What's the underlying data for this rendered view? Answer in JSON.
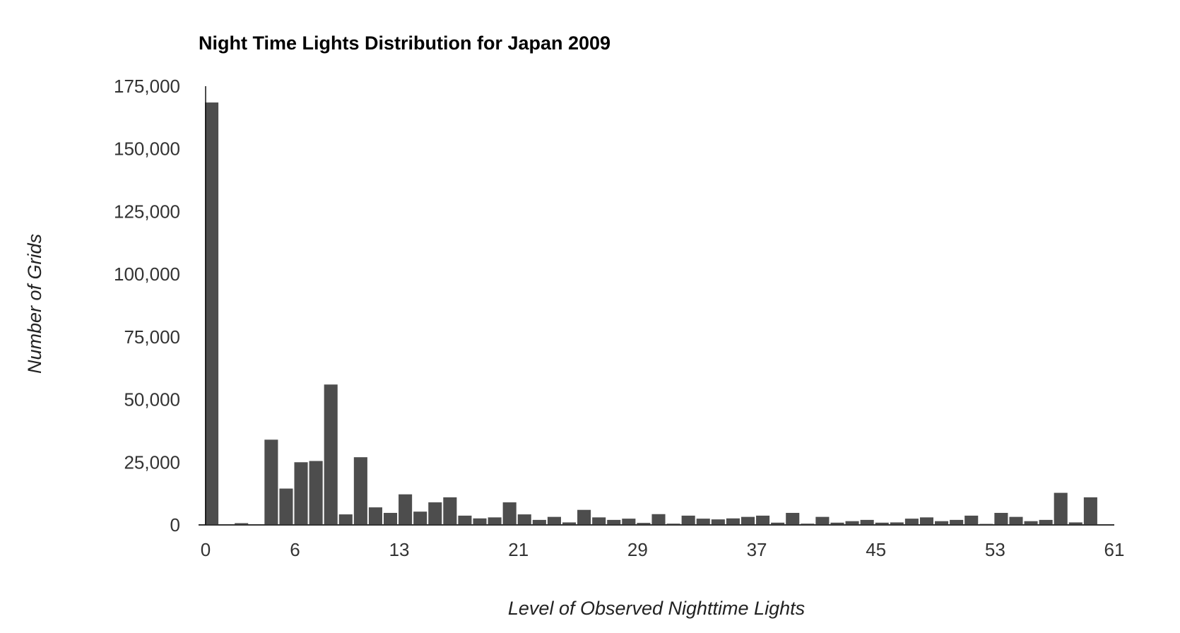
{
  "colors": {
    "bar": "#4d4d4d",
    "axis": "#333333",
    "text": "#333333",
    "background": "#ffffff"
  },
  "chart_data": {
    "type": "bar",
    "title": "Night Time Lights Distribution for Japan 2009",
    "xlabel": "Level of Observed Nighttime Lights",
    "ylabel": "Number of Grids",
    "xlim": [
      0,
      61
    ],
    "ylim": [
      0,
      175000
    ],
    "grid": false,
    "legend": "none",
    "x_ticks": [
      "0",
      "6",
      "13",
      "21",
      "29",
      "37",
      "45",
      "53",
      "61"
    ],
    "y_ticks": [
      "0",
      "25,000",
      "50,000",
      "75,000",
      "100,000",
      "125,000",
      "150,000",
      "175,000"
    ],
    "x": [
      0,
      1,
      2,
      3,
      4,
      5,
      6,
      7,
      8,
      9,
      10,
      11,
      12,
      13,
      14,
      15,
      16,
      17,
      18,
      19,
      20,
      21,
      22,
      23,
      24,
      25,
      26,
      27,
      28,
      29,
      30,
      31,
      32,
      33,
      34,
      35,
      36,
      37,
      38,
      39,
      40,
      41,
      42,
      43,
      44,
      45,
      46,
      47,
      48,
      49,
      50,
      51,
      52,
      53,
      54,
      55,
      56,
      57,
      58,
      59,
      60
    ],
    "values": [
      168500,
      0,
      700,
      200,
      34000,
      14500,
      25000,
      25500,
      56000,
      4200,
      27000,
      7000,
      4800,
      12200,
      5300,
      9000,
      11000,
      3700,
      2600,
      3000,
      9000,
      4200,
      2000,
      3200,
      1000,
      6000,
      3000,
      2000,
      2500,
      800,
      4300,
      500,
      3700,
      2500,
      2200,
      2600,
      3200,
      3700,
      900,
      4800,
      500,
      3200,
      900,
      1500,
      2000,
      900,
      1000,
      2500,
      3000,
      1500,
      2000,
      3700,
      400,
      4800,
      3200,
      1500,
      2000,
      12800,
      1000,
      11000,
      0
    ]
  }
}
